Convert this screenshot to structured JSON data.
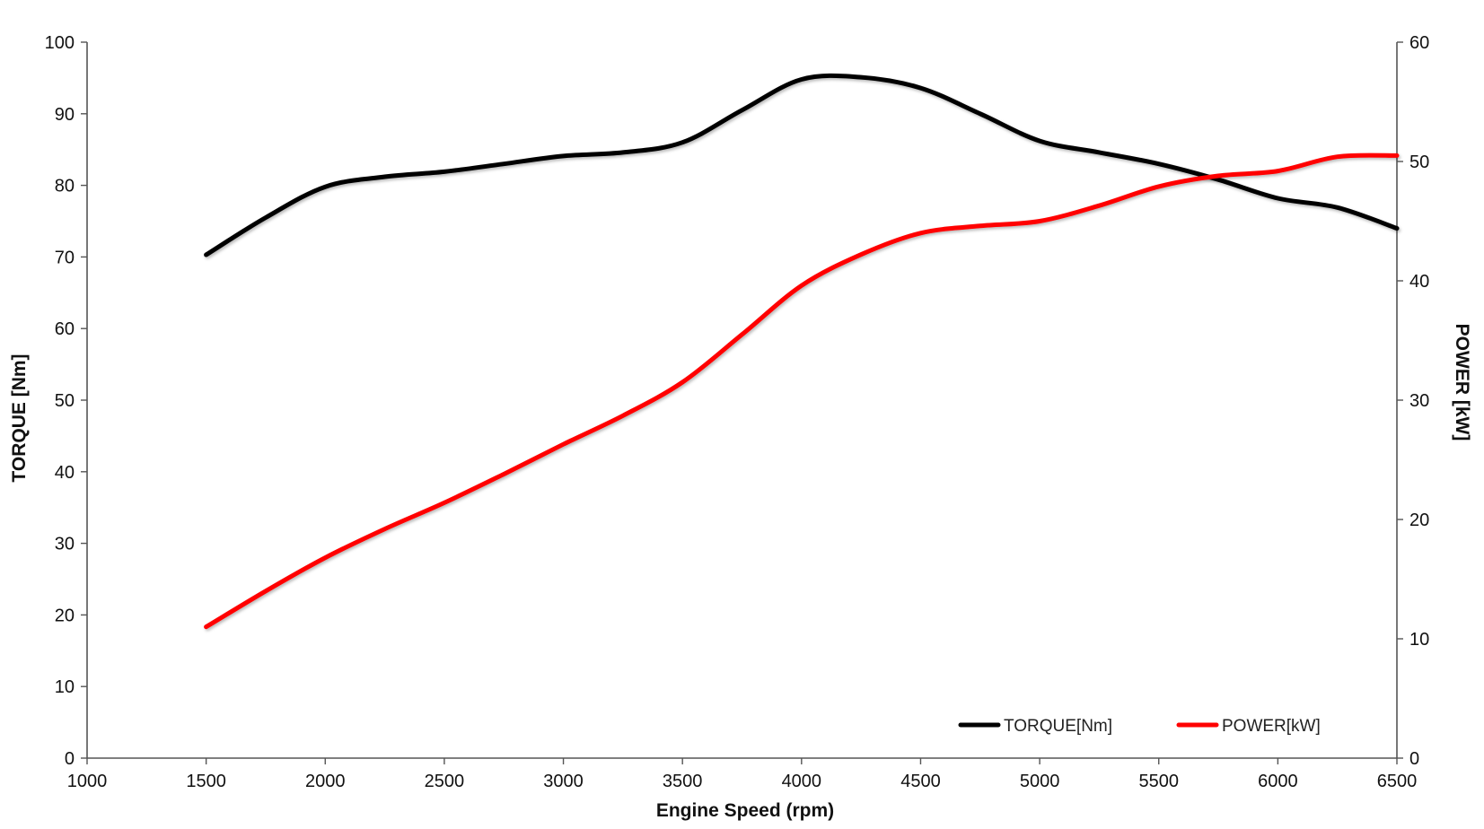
{
  "chart_data": {
    "type": "line",
    "xlabel": "Engine Speed (rpm)",
    "ylabel_left": "TORQUE [Nm]",
    "ylabel_right": "POWER [kW]",
    "xlim": [
      1000,
      6500
    ],
    "ylim_left": [
      0,
      100
    ],
    "ylim_right": [
      0,
      60
    ],
    "x_ticks": [
      1000,
      1500,
      2000,
      2500,
      3000,
      3500,
      4000,
      4500,
      5000,
      5500,
      6000,
      6500
    ],
    "y_left_ticks": [
      0,
      10,
      20,
      30,
      40,
      50,
      60,
      70,
      80,
      90,
      100
    ],
    "y_right_ticks": [
      0,
      10,
      20,
      30,
      40,
      50,
      60
    ],
    "grid": false,
    "legend_position": "bottom-right",
    "x": [
      1500,
      1750,
      2000,
      2250,
      2500,
      2750,
      3000,
      3250,
      3500,
      3750,
      4000,
      4250,
      4500,
      4750,
      5000,
      5250,
      5500,
      5750,
      6000,
      6250,
      6500
    ],
    "series": [
      {
        "name": "TORQUE[Nm]",
        "axis": "left",
        "color": "#000000",
        "values": [
          70.3,
          75.5,
          79.8,
          81.2,
          81.9,
          83.0,
          84.1,
          84.6,
          86.0,
          90.5,
          94.8,
          95.1,
          93.6,
          90.0,
          86.2,
          84.6,
          83.0,
          80.8,
          78.2,
          76.9,
          74.0
        ]
      },
      {
        "name": "POWER[kW]",
        "axis": "right",
        "color": "#ff0000",
        "values": [
          11.0,
          14.0,
          16.8,
          19.2,
          21.4,
          23.8,
          26.3,
          28.7,
          31.5,
          35.5,
          39.6,
          42.2,
          44.0,
          44.6,
          45.0,
          46.3,
          47.9,
          48.8,
          49.2,
          50.4,
          50.5
        ]
      }
    ]
  }
}
